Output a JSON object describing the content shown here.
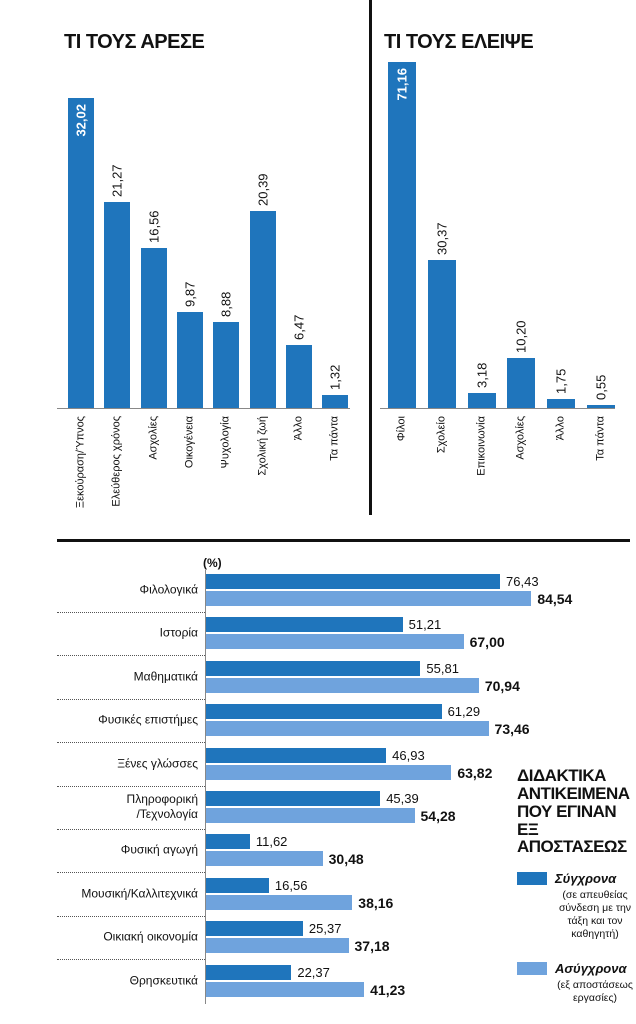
{
  "chart_data": [
    {
      "type": "bar",
      "title": "ΤΙ ΤΟΥΣ ΑΡΕΣΕ",
      "color": "#1f75bc",
      "categories": [
        "Ξεκούραση/Ύπνος",
        "Ελεύθερος χρόνος",
        "Ασχολίες",
        "Οικογένεια",
        "Ψυχολογία",
        "Σχολική ζωή",
        "Άλλο",
        "Τα πάντα"
      ],
      "values": [
        32.02,
        21.27,
        16.56,
        9.87,
        8.88,
        20.39,
        6.47,
        1.32
      ],
      "value_labels": [
        "32,02",
        "21,27",
        "16,56",
        "9,87",
        "8,88",
        "20,39",
        "6,47",
        "1,32"
      ]
    },
    {
      "type": "bar",
      "title": "ΤΙ ΤΟΥΣ ΕΛΕΙΨΕ",
      "color": "#1f75bc",
      "categories": [
        "Φίλοι",
        "Σχολείο",
        "Επικοινωνία",
        "Ασχολίες",
        "Άλλο",
        "Τα πάντα"
      ],
      "values": [
        71.16,
        30.37,
        3.18,
        10.2,
        1.75,
        0.55
      ],
      "value_labels": [
        "71,16",
        "30,37",
        "3,18",
        "10,20",
        "1,75",
        "0,55"
      ]
    },
    {
      "type": "hbar",
      "title": "ΔΙΔΑΚΤΙΚΑ\nΑΝΤΙΚΕΙΜΕΝΑ\nΠΟΥ ΕΓΙΝΑΝ\nΕΞ ΑΠΟΣΤΑΣΕΩΣ",
      "unit": "(%)",
      "categories": [
        "Φιλολογικά",
        "Ιστορία",
        "Μαθηματικά",
        "Φυσικές επιστήμες",
        "Ξένες γλώσσες",
        "Πληροφορική\n/Τεχνολογία",
        "Φυσική αγωγή",
        "Μουσική/Καλλιτεχνικά",
        "Οικιακή οικονομία",
        "Θρησκευτικά"
      ],
      "series": [
        {
          "name": "Σύγχρονα",
          "description": "(σε απευθείας σύνδεση με την τάξη και τον καθηγητή)",
          "color": "#1f75bc",
          "values": [
            76.43,
            51.21,
            55.81,
            61.29,
            46.93,
            45.39,
            11.62,
            16.56,
            25.37,
            22.37
          ],
          "value_labels": [
            "76,43",
            "51,21",
            "55,81",
            "61,29",
            "46,93",
            "45,39",
            "11,62",
            "16,56",
            "25,37",
            "22,37"
          ]
        },
        {
          "name": "Ασύγχρονα",
          "description": "(εξ αποστάσεως εργασίες)",
          "color": "#6fa3dd",
          "values": [
            84.54,
            67.0,
            70.94,
            73.46,
            63.82,
            54.28,
            30.48,
            38.16,
            37.18,
            41.23
          ],
          "value_labels": [
            "84,54",
            "67,00",
            "70,94",
            "73,46",
            "63,82",
            "54,28",
            "30,48",
            "38,16",
            "37,18",
            "41,23"
          ]
        }
      ]
    }
  ]
}
